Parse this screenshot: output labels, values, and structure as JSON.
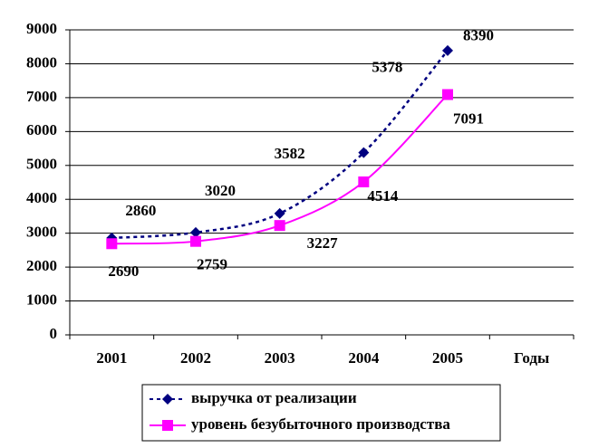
{
  "chart_data": {
    "type": "line",
    "categories": [
      "2001",
      "2002",
      "2003",
      "2004",
      "2005"
    ],
    "x_label": "Годы",
    "series": [
      {
        "name": "выручка от реализации",
        "color": "#000080",
        "line_style": "dotted",
        "marker": "diamond",
        "values": [
          2860,
          3020,
          3582,
          5378,
          8390
        ]
      },
      {
        "name": "уровень безубыточного производства",
        "color": "#ff00ff",
        "line_style": "solid",
        "marker": "square",
        "values": [
          2690,
          2759,
          3227,
          4514,
          7091
        ]
      }
    ],
    "ylim": [
      0,
      9000
    ],
    "yticks": [
      0,
      1000,
      2000,
      3000,
      4000,
      5000,
      6000,
      7000,
      8000,
      9000
    ],
    "grid": true,
    "legend": "bottom"
  }
}
